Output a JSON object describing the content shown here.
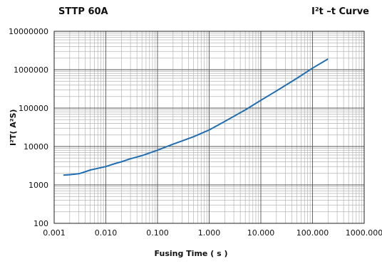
{
  "header": {
    "left": "STTP 60A",
    "right": "I²t –t Curve"
  },
  "chart_data": {
    "type": "line",
    "title": "STTP 60A",
    "subtitle": "I²t –t Curve",
    "xlabel": "Fusing Time ( s )",
    "ylabel": "I²T(  A²S)",
    "xscale": "log",
    "yscale": "log",
    "xlim": [
      0.001,
      1000
    ],
    "ylim": [
      100,
      10000000
    ],
    "xticks": [
      {
        "value": 0.001,
        "label": "0.001"
      },
      {
        "value": 0.01,
        "label": "0.010"
      },
      {
        "value": 0.1,
        "label": "0.100"
      },
      {
        "value": 1,
        "label": "1.000"
      },
      {
        "value": 10,
        "label": "10.000"
      },
      {
        "value": 100,
        "label": "100.000"
      },
      {
        "value": 1000,
        "label": "1000.000"
      }
    ],
    "yticks": [
      {
        "value": 100,
        "label": "100"
      },
      {
        "value": 1000,
        "label": "1000"
      },
      {
        "value": 10000,
        "label": "10000"
      },
      {
        "value": 100000,
        "label": "100000"
      },
      {
        "value": 1000000,
        "label": "1000000"
      },
      {
        "value": 10000000,
        "label": "10000000"
      }
    ],
    "grid": true,
    "line_color": "#1f6fb2",
    "series": [
      {
        "x": [
          0.0015,
          0.002,
          0.003,
          0.004,
          0.005,
          0.007,
          0.01,
          0.015,
          0.02,
          0.03,
          0.05,
          0.1,
          0.2,
          0.3,
          0.5,
          1,
          2,
          5,
          10,
          20,
          50,
          100,
          200
        ],
        "y": [
          1800,
          1850,
          1950,
          2200,
          2450,
          2700,
          3000,
          3600,
          4000,
          4800,
          5800,
          8000,
          11500,
          14000,
          18000,
          27000,
          45000,
          90000,
          160000,
          280000,
          600000,
          1100000,
          1900000
        ]
      }
    ]
  }
}
